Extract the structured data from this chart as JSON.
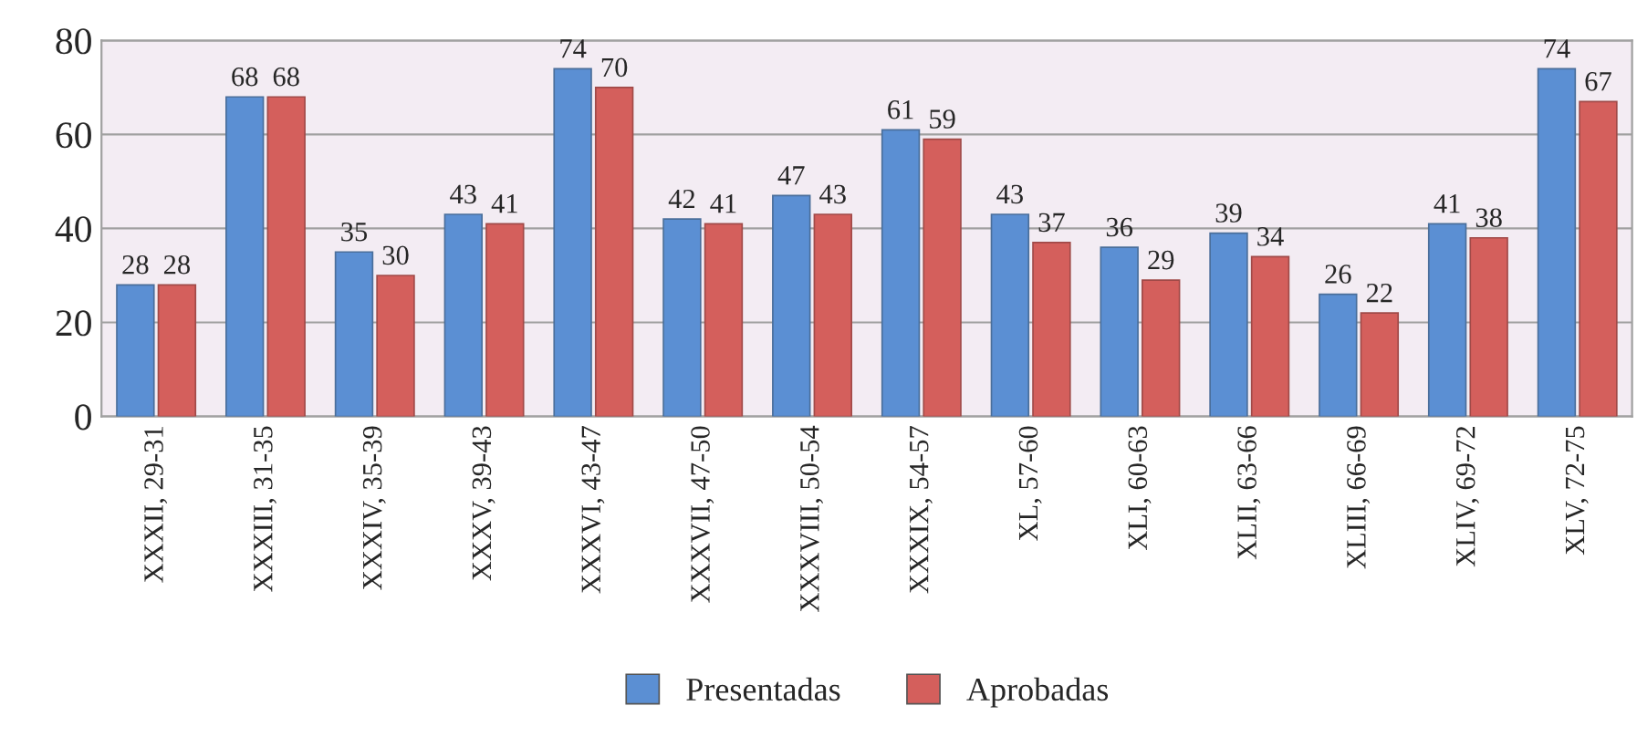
{
  "chart_data": {
    "type": "bar",
    "categories": [
      "XXXII, 29-31",
      "XXXIII, 31-35",
      "XXXIV, 35-39",
      "XXXV, 39-43",
      "XXXVI, 43-47",
      "XXXVII, 47-50",
      "XXXVIII, 50-54",
      "XXXIX, 54-57",
      "XL, 57-60",
      "XLI, 60-63",
      "XLII, 63-66",
      "XLIII, 66-69",
      "XLIV, 69-72",
      "XLV, 72-75"
    ],
    "series": [
      {
        "name": "Presentadas",
        "color": "#5b8fd3",
        "values": [
          28,
          68,
          35,
          43,
          74,
          42,
          47,
          61,
          43,
          36,
          39,
          26,
          41,
          74
        ]
      },
      {
        "name": "Aprobadas",
        "color": "#d45f5c",
        "values": [
          28,
          68,
          30,
          41,
          70,
          41,
          43,
          59,
          37,
          29,
          34,
          22,
          38,
          67
        ]
      }
    ],
    "ylim": [
      0,
      80
    ],
    "yticks": [
      0,
      20,
      40,
      60,
      80
    ],
    "grid": "y",
    "legend": "bottom",
    "data_labels": true
  }
}
